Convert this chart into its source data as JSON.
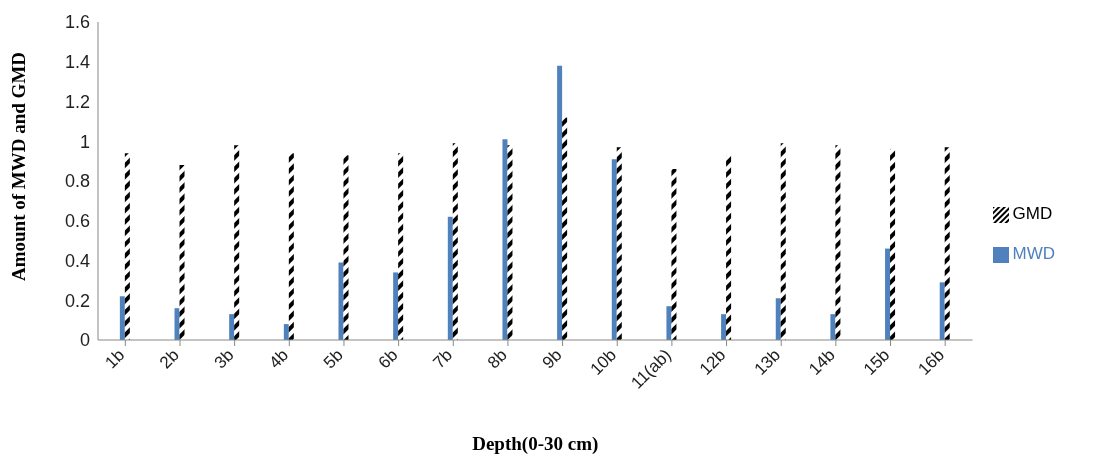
{
  "chart_data": {
    "type": "bar",
    "xlabel": "Depth(0-30 cm)",
    "ylabel": "Amount of MWD and GMD",
    "categories": [
      "1b",
      "2b",
      "3b",
      "4b",
      "5b",
      "6b",
      "7b",
      "8b",
      "9b",
      "10b",
      "11(ab)",
      "12b",
      "13b",
      "14b",
      "15b",
      "16b"
    ],
    "series": [
      {
        "name": "MWD",
        "color": "#4f81bd",
        "values": [
          0.22,
          0.16,
          0.13,
          0.08,
          0.39,
          0.34,
          0.62,
          1.01,
          1.38,
          0.91,
          0.17,
          0.13,
          0.21,
          0.13,
          0.46,
          0.29
        ]
      },
      {
        "name": "GMD",
        "color": "#000000",
        "values": [
          0.94,
          0.88,
          0.98,
          0.94,
          0.93,
          0.94,
          0.99,
          0.98,
          1.12,
          0.97,
          0.86,
          0.93,
          0.99,
          0.98,
          0.96,
          0.97
        ]
      }
    ],
    "ylim": [
      0,
      1.6
    ],
    "yticks": [
      0,
      0.2,
      0.4,
      0.6,
      0.8,
      1,
      1.2,
      1.4,
      1.6
    ],
    "grid": false,
    "legend": "right"
  }
}
